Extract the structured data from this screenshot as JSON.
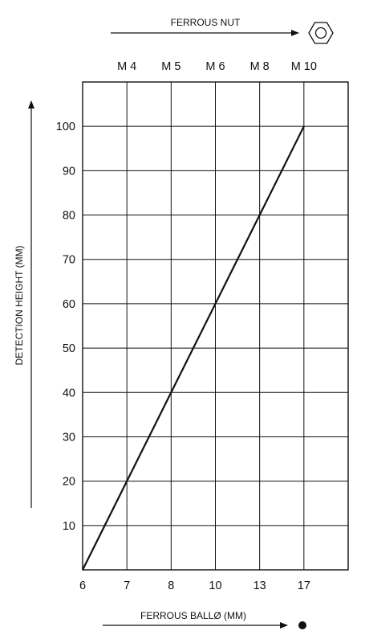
{
  "chart_data": {
    "type": "line",
    "top_axis": {
      "title": "FERROUS NUT",
      "ticks": [
        "M 4",
        "M 5",
        "M 6",
        "M 8",
        "M 10"
      ],
      "icon": "hexagon-nut-icon"
    },
    "bottom_axis": {
      "title": "FERROUS BALLØ (MM)",
      "ticks": [
        "6",
        "7",
        "8",
        "10",
        "13",
        "17"
      ],
      "icon": "filled-circle-icon"
    },
    "y_axis": {
      "title": "DETECTION HEIGHT (MM)",
      "ticks": [
        "10",
        "20",
        "30",
        "40",
        "50",
        "60",
        "70",
        "80",
        "90",
        "100"
      ],
      "range": [
        0,
        110
      ]
    },
    "grid": true,
    "series": [
      {
        "x": [
          "6",
          "7",
          "8",
          "10",
          "13",
          "17"
        ],
        "y": [
          0,
          20,
          40,
          60,
          80,
          100
        ]
      }
    ]
  }
}
